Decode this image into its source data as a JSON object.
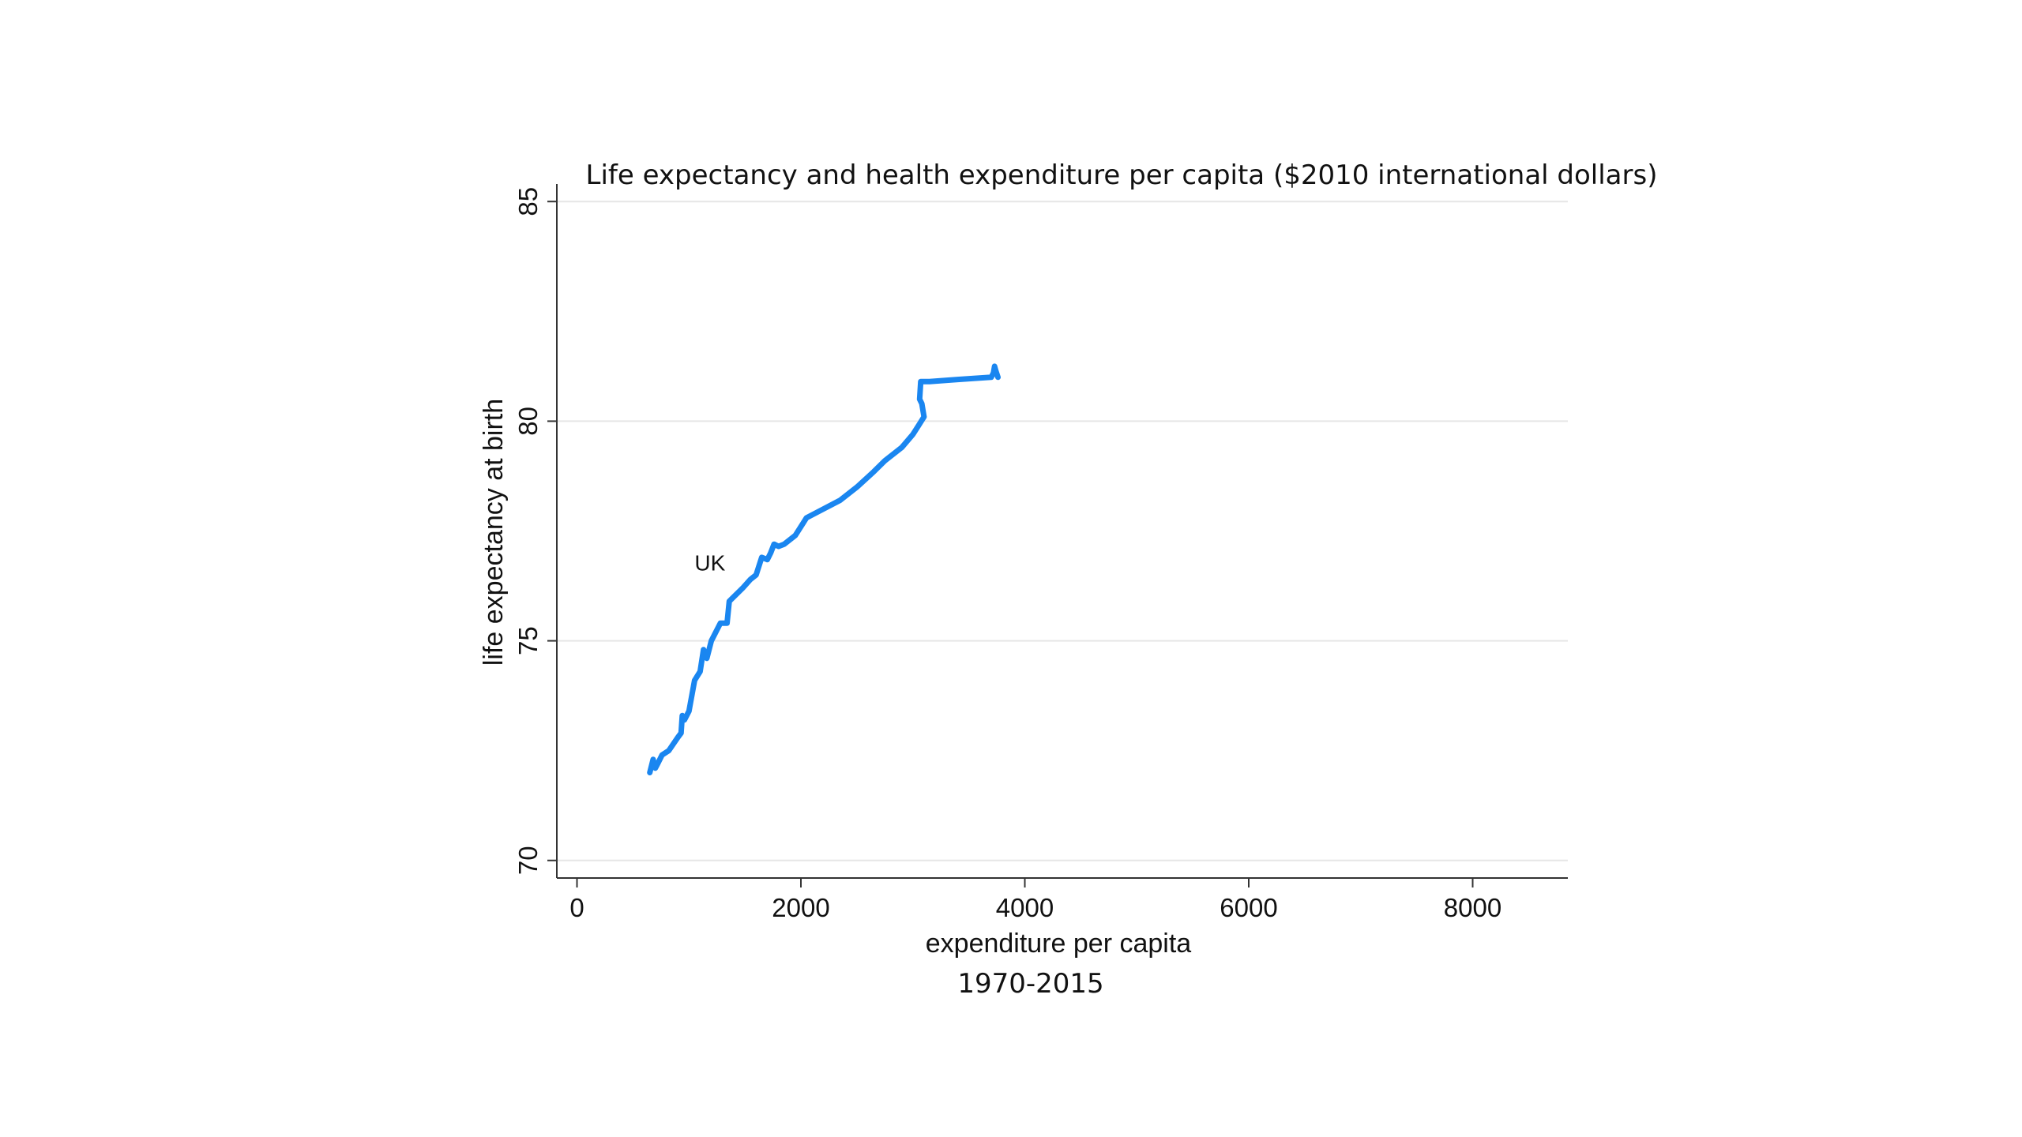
{
  "chart_data": {
    "type": "line",
    "title": "Life expectancy and health expenditure per capita ($2010 international dollars)",
    "xlabel": "expenditure per capita",
    "ylabel": "life expectancy at birth",
    "caption": "1970-2015",
    "xlim": [
      -180,
      8850
    ],
    "ylim": [
      69.6,
      85.4
    ],
    "x_ticks": [
      0,
      2000,
      4000,
      6000,
      8000
    ],
    "y_ticks": [
      70,
      75,
      80,
      85
    ],
    "grid": true,
    "colors": {
      "line": "#1a86f0",
      "axis": "#333333",
      "grid": "#e6e6e6"
    },
    "annotations": [
      {
        "text": "UK",
        "x": 1050,
        "y": 76.6
      }
    ],
    "series": [
      {
        "name": "",
        "x": [
          650,
          680,
          700,
          720,
          760,
          820,
          900,
          930,
          940,
          960,
          1000,
          1050,
          1100,
          1130,
          1160,
          1200,
          1280,
          1340,
          1360,
          1480,
          1550,
          1600,
          1650,
          1700,
          1730,
          1760,
          1800,
          1850,
          1950,
          2050,
          2200,
          2350,
          2500,
          2650,
          2750,
          2900,
          3000,
          3050,
          3100,
          3080,
          3060,
          3070,
          3150,
          3400,
          3700,
          3720,
          3730,
          3740,
          3760
        ],
        "y": [
          72.0,
          72.3,
          72.1,
          72.2,
          72.4,
          72.5,
          72.8,
          72.9,
          73.3,
          73.2,
          73.4,
          74.1,
          74.3,
          74.8,
          74.6,
          75.0,
          75.4,
          75.4,
          75.9,
          76.2,
          76.4,
          76.5,
          76.9,
          76.85,
          77.0,
          77.2,
          77.15,
          77.2,
          77.4,
          77.8,
          78.0,
          78.2,
          78.5,
          78.85,
          79.1,
          79.4,
          79.7,
          79.9,
          80.1,
          80.4,
          80.5,
          80.9,
          80.9,
          80.95,
          81.0,
          81.1,
          81.25,
          81.15,
          81.0
        ]
      }
    ]
  }
}
